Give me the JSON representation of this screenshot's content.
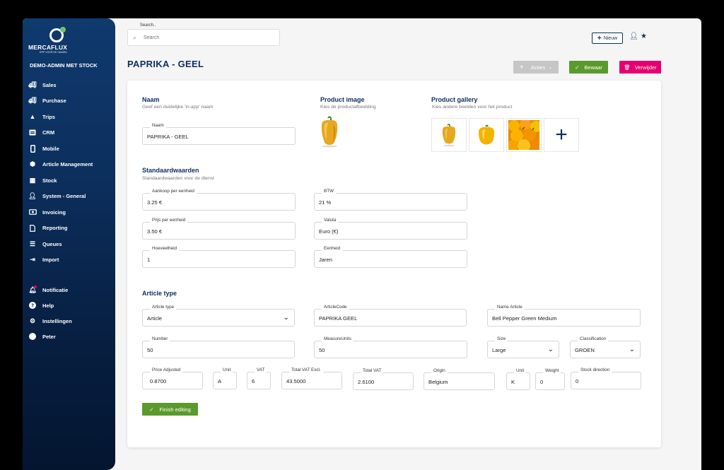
{
  "sidebar": {
    "brand": "MERCAFLUX",
    "tagline": "ERP VOOR DE HANDEL",
    "company": "DEMO-ADMIN MET STOCK",
    "items": [
      {
        "label": "Sales",
        "icon": "truck-icon"
      },
      {
        "label": "Purchase",
        "icon": "truck-icon"
      },
      {
        "label": "Trips",
        "icon": "navigation-arrow-icon"
      },
      {
        "label": "CRM",
        "icon": "card-icon"
      },
      {
        "label": "Mobile",
        "icon": "mobile-icon"
      },
      {
        "label": "Article Management",
        "icon": "cubes-icon"
      },
      {
        "label": "Stock",
        "icon": "boxes-icon"
      },
      {
        "label": "System - General",
        "icon": "user-gear-icon"
      },
      {
        "label": "Invoicing",
        "icon": "money-icon"
      },
      {
        "label": "Reporting",
        "icon": "report-icon"
      },
      {
        "label": "Queues",
        "icon": "list-icon"
      },
      {
        "label": "Import",
        "icon": "import-icon"
      }
    ],
    "bottom_items": [
      {
        "label": "Notificatie",
        "icon": "bell-icon"
      },
      {
        "label": "Help",
        "icon": "question-icon"
      },
      {
        "label": "Instellingen",
        "icon": "gear-icon"
      },
      {
        "label": "Peter",
        "icon": "avatar-icon"
      }
    ]
  },
  "topbar": {
    "search_label": "Search..",
    "search_placeholder": "Search",
    "new_label": "Nieuw"
  },
  "page": {
    "title": "PAPRIKA - GEEL",
    "actions_label": "Acties",
    "save_label": "Bewaar",
    "delete_label": "Verwijder"
  },
  "naam": {
    "title": "Naam",
    "subtitle": "Geef een duidelijke 'in-app' naam",
    "field_label": "Naam",
    "field_value": "PAPRIKA - GEEL"
  },
  "product_image": {
    "title": "Product image",
    "subtitle": "Kies de productafbeelding"
  },
  "gallery": {
    "title": "Product gallery",
    "subtitle": "Kies andere beelden voor het product"
  },
  "defaults": {
    "title": "Standaardwaarden",
    "subtitle": "Standaardwaarden voor de dienst",
    "aankoop_label": "Aankoop per eenheid",
    "aankoop_value": "3.25 €",
    "btw_label": "BTW",
    "btw_value": "21 %",
    "prijs_label": "Prijs per eenheid",
    "prijs_value": "3.50 €",
    "valuta_label": "Valuta",
    "valuta_value": "Euro (€)",
    "hoeveelheid_label": "Hoeveelheid",
    "hoeveelheid_value": "1",
    "eenheid_label": "Eenheid",
    "eenheid_value": "Jaren"
  },
  "article": {
    "title": "Article type",
    "type_label": "Article type",
    "type_value": "Article",
    "code_label": "ArticleCode",
    "code_value": "PAPRIKA GEEL",
    "name_label": "Name Article",
    "name_value": "Bell Pepper Green Medium",
    "number_label": "Number",
    "number_value": "50",
    "measure_label": "MeasureUnits",
    "measure_value": "50",
    "size_label": "Size",
    "size_value": "Large",
    "class_label": "Classification",
    "class_value": "GROEN",
    "price_label": "Price Adjusted",
    "price_value": "0.8700",
    "unit_label": "Unit",
    "unit_value": "A",
    "vat_label": "VAT",
    "vat_value": "6",
    "tve_label": "Total VAT Excl.",
    "tve_value": "43.5000",
    "tv_label": "Total VAT",
    "tv_value": "2.6100",
    "origin_label": "Origin",
    "origin_value": "Belgium",
    "unit2_label": "Unit",
    "unit2_value": "K",
    "weight_label": "Weight",
    "weight_value": "0",
    "stock_label": "Stock direction",
    "stock_value": "0",
    "finish_label": "Finish editing"
  }
}
